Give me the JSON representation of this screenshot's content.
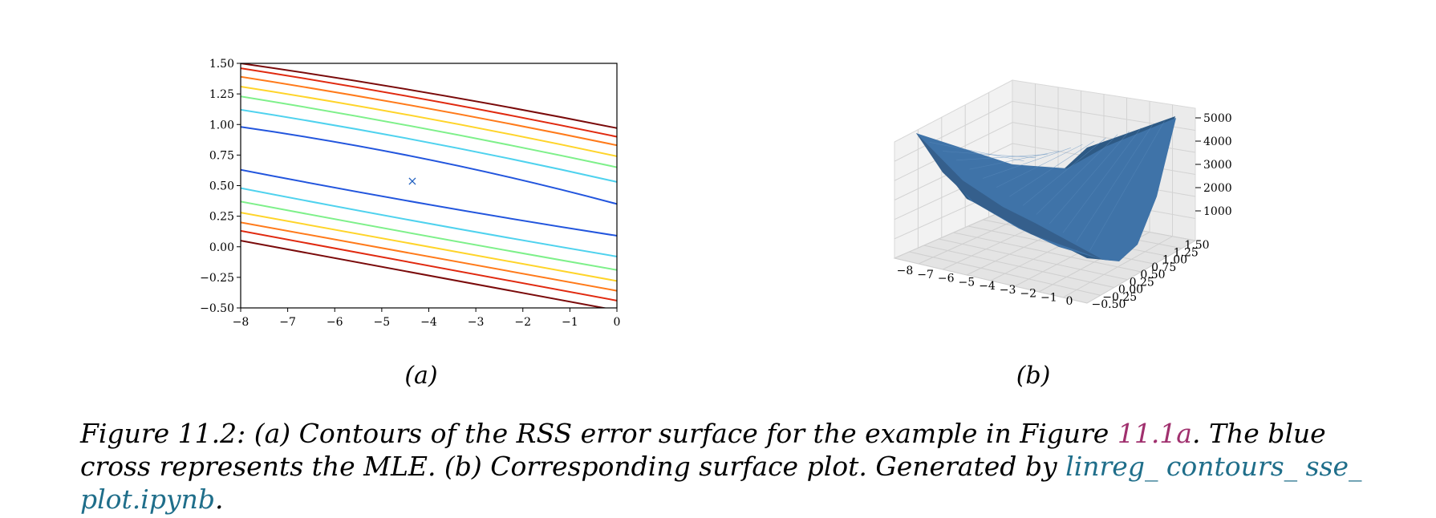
{
  "figure": {
    "sublabel_a": "(a)",
    "sublabel_b": "(b)",
    "caption": {
      "part1": "Figure 11.2: (a) Contours of the RSS error surface for the example in Figure",
      "ref": "11.1a",
      "part2": ". The blue cross represents the MLE. (b) Corresponding surface plot. Generated by",
      "link": "linreg_ contours_ sse_ plot.ipynb",
      "end": "."
    }
  },
  "chart_data": [
    {
      "type": "contour",
      "title": "",
      "xlabel": "",
      "ylabel": "",
      "xlim": [
        -8,
        0
      ],
      "ylim": [
        -0.5,
        1.5
      ],
      "xticks": [
        "−8",
        "−7",
        "−6",
        "−5",
        "−4",
        "−3",
        "−2",
        "−1",
        "0"
      ],
      "yticks": [
        "−0.50",
        "−0.25",
        "0.00",
        "0.25",
        "0.50",
        "0.75",
        "1.00",
        "1.25",
        "1.50"
      ],
      "grid": false,
      "marker": {
        "symbol": "×",
        "x": -4.35,
        "y": 0.54,
        "color": "#1f5fbf"
      },
      "contours": [
        {
          "color": "#7a0a0a",
          "points": [
            [
              -8,
              1.5
            ],
            [
              -4,
              1.28
            ],
            [
              0,
              0.97
            ]
          ]
        },
        {
          "color": "#e02a10",
          "points": [
            [
              -8,
              1.46
            ],
            [
              -4,
              1.22
            ],
            [
              0,
              0.9
            ]
          ]
        },
        {
          "color": "#ff7a1a",
          "points": [
            [
              -8,
              1.39
            ],
            [
              -4,
              1.15
            ],
            [
              0,
              0.83
            ]
          ]
        },
        {
          "color": "#ffd42a",
          "points": [
            [
              -8,
              1.31
            ],
            [
              -4,
              1.07
            ],
            [
              0,
              0.74
            ]
          ]
        },
        {
          "color": "#7ef08a",
          "points": [
            [
              -8,
              1.23
            ],
            [
              -4,
              0.98
            ],
            [
              0,
              0.65
            ]
          ]
        },
        {
          "color": "#4fd2ee",
          "points": [
            [
              -8,
              1.12
            ],
            [
              -4,
              0.88
            ],
            [
              0,
              0.53
            ]
          ]
        },
        {
          "color": "#2255dd",
          "points": [
            [
              -8,
              0.98
            ],
            [
              -4,
              0.76
            ],
            [
              0,
              0.35
            ]
          ]
        },
        {
          "color": "#2255dd",
          "points": [
            [
              -8,
              0.63
            ],
            [
              -4,
              0.33
            ],
            [
              0,
              0.09
            ]
          ]
        },
        {
          "color": "#4fd2ee",
          "points": [
            [
              -8,
              0.48
            ],
            [
              -4,
              0.18
            ],
            [
              0,
              -0.08
            ]
          ]
        },
        {
          "color": "#7ef08a",
          "points": [
            [
              -8,
              0.37
            ],
            [
              -4,
              0.08
            ],
            [
              0,
              -0.19
            ]
          ]
        },
        {
          "color": "#ffd42a",
          "points": [
            [
              -8,
              0.28
            ],
            [
              -4,
              0.0
            ],
            [
              0,
              -0.28
            ]
          ]
        },
        {
          "color": "#ff7a1a",
          "points": [
            [
              -8,
              0.2
            ],
            [
              -4,
              -0.08
            ],
            [
              0,
              -0.36
            ]
          ]
        },
        {
          "color": "#e02a10",
          "points": [
            [
              -8,
              0.13
            ],
            [
              -4,
              -0.15
            ],
            [
              0,
              -0.44
            ]
          ]
        },
        {
          "color": "#7a0a0a",
          "points": [
            [
              -8,
              0.05
            ],
            [
              -4,
              -0.23
            ],
            [
              0,
              -0.52
            ]
          ]
        }
      ]
    },
    {
      "type": "surface",
      "title": "",
      "xlim": [
        -8,
        0
      ],
      "ylim": [
        -0.5,
        1.5
      ],
      "xticks": [
        "−8",
        "−7",
        "−6",
        "−5",
        "−4",
        "−3",
        "−2",
        "−1",
        "0"
      ],
      "yticks": [
        "−0.50",
        "−0.25",
        "0.00",
        "0.25",
        "0.50",
        "0.75",
        "1.00",
        "1.25",
        "1.50"
      ],
      "zticks": [
        "1000",
        "2000",
        "3000",
        "4000",
        "5000"
      ],
      "surface_color": "#3f73a8"
    }
  ]
}
